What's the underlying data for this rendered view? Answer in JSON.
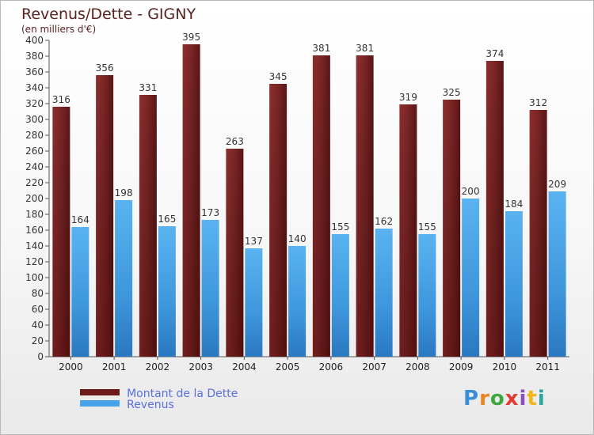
{
  "title": "Revenus/Dette - GIGNY",
  "subtitle": "(en milliers d'€)",
  "logo_text": "Proxiti",
  "chart_data": {
    "type": "bar",
    "title": "Revenus/Dette - GIGNY",
    "subtitle": "(en milliers d'€)",
    "categories": [
      "2000",
      "2001",
      "2002",
      "2003",
      "2004",
      "2005",
      "2006",
      "2007",
      "2008",
      "2009",
      "2010",
      "2011"
    ],
    "series": [
      {
        "name": "Montant de la Dette",
        "color": "#6b1a1a",
        "values": [
          316,
          356,
          331,
          395,
          263,
          345,
          381,
          381,
          319,
          325,
          374,
          312
        ]
      },
      {
        "name": "Revenus",
        "color": "#4aa3e8",
        "values": [
          164,
          198,
          165,
          173,
          137,
          140,
          155,
          162,
          155,
          200,
          184,
          209
        ]
      }
    ],
    "ylim": [
      0,
      400
    ],
    "ytick_step": 20,
    "grid": false,
    "legend": "bottom-left"
  },
  "legend": [
    {
      "label": "Montant de la Dette",
      "color": "#6b1a1a"
    },
    {
      "label": "Revenus",
      "color": "#4aa3e8"
    }
  ]
}
